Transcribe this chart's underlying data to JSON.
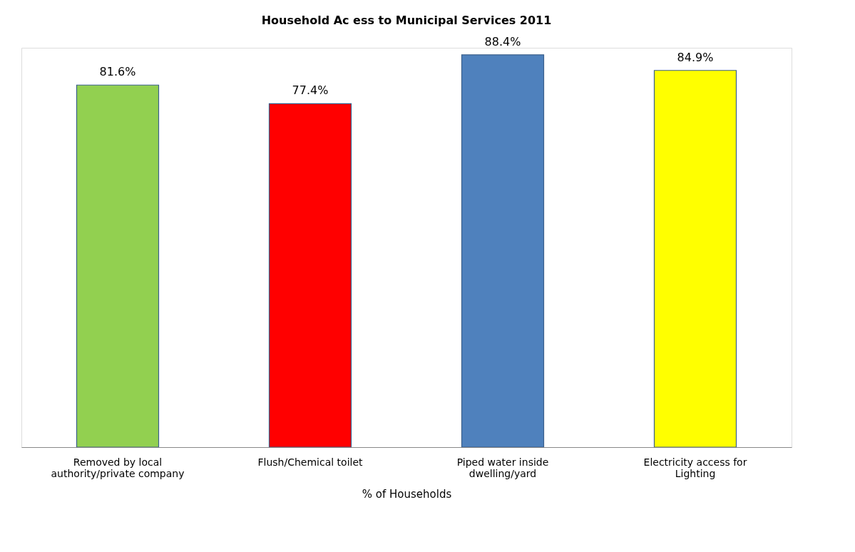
{
  "chart_data": {
    "type": "bar",
    "title": "Household Ac ess to Municipal Services 2011",
    "xlabel": "% of Households",
    "categories": [
      "Removed by local authority/private company",
      "Flush/Chemical toilet",
      "Piped water inside dwelling/yard",
      "Electricity access for Lighting"
    ],
    "values": [
      81.6,
      77.4,
      88.4,
      84.9
    ],
    "colors": [
      "#92d050",
      "#ff0000",
      "#4f81bd",
      "#ffff00"
    ],
    "value_labels": [
      "81.6%",
      "77.4%",
      "88.4%",
      "84.9%"
    ],
    "tick_labels": "x",
    "grid": false
  }
}
